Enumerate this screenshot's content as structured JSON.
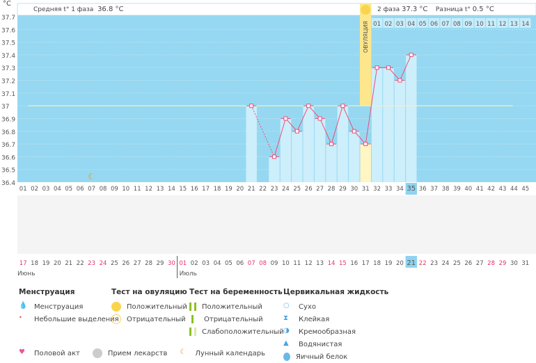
{
  "header": {
    "unit": "°C",
    "phase1_label": "Средняя t° 1 фаза",
    "phase1_value": "36.8 °C",
    "phase2_label": "2 фаза",
    "phase2_value": "37.3 °C",
    "diff_label": "Разница t°",
    "diff_value": "0.5 °C",
    "ovulation_label": "ОВУЛЯЦИЯ"
  },
  "chart_data": {
    "type": "line",
    "ylim": [
      36.4,
      37.7
    ],
    "yticks": [
      "37.7",
      "37.6",
      "37.5",
      "37.4",
      "37.3",
      "37.2",
      "37.1",
      "37",
      "36.9",
      "36.8",
      "36.7",
      "36.6",
      "36.5",
      "36.4"
    ],
    "cycle_days": 45,
    "current_day": 35,
    "ovulation_day": 31,
    "coverline": 37.0,
    "points": [
      {
        "day": 21,
        "t": 37.0
      },
      {
        "day": 23,
        "t": 36.6
      },
      {
        "day": 24,
        "t": 36.9
      },
      {
        "day": 25,
        "t": 36.8
      },
      {
        "day": 26,
        "t": 37.0
      },
      {
        "day": 27,
        "t": 36.9
      },
      {
        "day": 28,
        "t": 36.7
      },
      {
        "day": 29,
        "t": 37.0
      },
      {
        "day": 30,
        "t": 36.8
      },
      {
        "day": 31,
        "t": 36.7
      },
      {
        "day": 32,
        "t": 37.3
      },
      {
        "day": 33,
        "t": 37.3
      },
      {
        "day": 34,
        "t": 37.2
      },
      {
        "day": 35,
        "t": 37.4
      }
    ],
    "moon_day": 7,
    "dates": [
      "17",
      "18",
      "19",
      "20",
      "21",
      "22",
      "23",
      "24",
      "25",
      "26",
      "27",
      "28",
      "29",
      "30",
      "01",
      "02",
      "03",
      "04",
      "05",
      "06",
      "07",
      "08",
      "09",
      "10",
      "11",
      "12",
      "13",
      "14",
      "15",
      "16",
      "17",
      "18",
      "19",
      "20",
      "21",
      "22",
      "23",
      "24",
      "25",
      "26",
      "27",
      "28",
      "29",
      "30",
      "31"
    ],
    "weekend_idx": [
      0,
      6,
      7,
      13,
      14,
      20,
      21,
      27,
      28,
      35,
      41,
      42
    ],
    "months": [
      "Июнь",
      "Июль"
    ]
  },
  "legend": {
    "menstruation": {
      "title": "Менструация",
      "items": [
        "Менструация",
        "Небольшие выделения"
      ]
    },
    "ovulation_test": {
      "title": "Тест на овуляцию",
      "items": [
        "Положительный",
        "Отрицательный"
      ]
    },
    "pregnancy_test": {
      "title": "Тест на беременность",
      "items": [
        "Положительный",
        "Отрицательный",
        "Слабоположительный"
      ]
    },
    "cervical": {
      "title": "Цервикальная жидкость",
      "items": [
        "Сухо",
        "Клейкая",
        "Кремообразная",
        "Водянистая",
        "Яичный белок"
      ]
    },
    "other": [
      "Половой акт",
      "Прием лекарств",
      "Лунный календарь"
    ]
  }
}
